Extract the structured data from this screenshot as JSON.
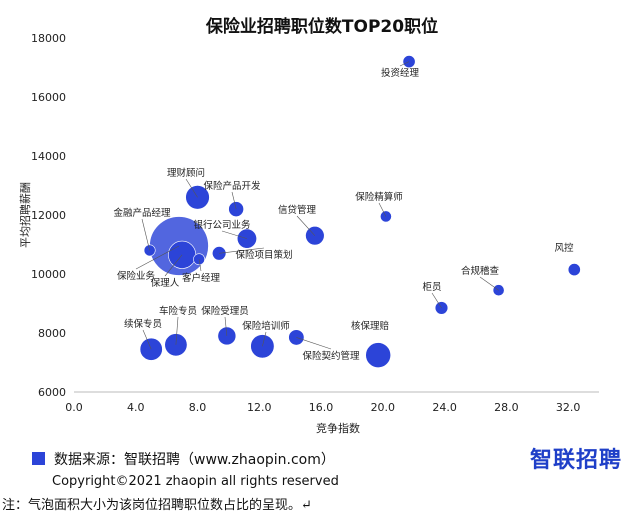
{
  "chart_data": {
    "type": "scatter",
    "title": "保险业招聘职位数TOP20职位",
    "xlabel": "竞争指数",
    "ylabel": "平均招聘薪酬",
    "xlim": [
      0,
      34
    ],
    "ylim": [
      6000,
      18000
    ],
    "xticks": [
      "0.0",
      "4.0",
      "8.0",
      "12.0",
      "16.0",
      "20.0",
      "24.0",
      "28.0",
      "32.0"
    ],
    "xtick_values": [
      0,
      4,
      8,
      12,
      16,
      20,
      24,
      28,
      32
    ],
    "yticks": [
      "6000",
      "8000",
      "10000",
      "12000",
      "14000",
      "16000",
      "18000"
    ],
    "ytick_values": [
      6000,
      8000,
      10000,
      12000,
      14000,
      16000,
      18000
    ],
    "grid": false,
    "color": "#2c44d8",
    "points": [
      {
        "label": "投资经理",
        "x": 21.7,
        "y": 17200,
        "size": 1.2
      },
      {
        "label": "理财顾问",
        "x": 8.0,
        "y": 12600,
        "size": 4.5
      },
      {
        "label": "保险产品开发",
        "x": 10.5,
        "y": 12200,
        "size": 1.8
      },
      {
        "label": "金融产品经理",
        "x": 4.9,
        "y": 10800,
        "size": 1.0
      },
      {
        "label": "银行公司业务",
        "x": 11.2,
        "y": 11200,
        "size": 3.0
      },
      {
        "label": "保险项目策划",
        "x": 9.4,
        "y": 10700,
        "size": 1.5
      },
      {
        "label": "信贷管理",
        "x": 15.6,
        "y": 11300,
        "size": 2.8
      },
      {
        "label": "保险精算师",
        "x": 20.2,
        "y": 11950,
        "size": 1.0
      },
      {
        "label": "保险业务",
        "x": 6.8,
        "y": 10950,
        "size": 28
      },
      {
        "label": "保理人",
        "x": 7.0,
        "y": 10650,
        "size": 6
      },
      {
        "label": "客户经理",
        "x": 8.1,
        "y": 10500,
        "size": 1.0
      },
      {
        "label": "风控",
        "x": 32.4,
        "y": 10150,
        "size": 1.2
      },
      {
        "label": "合规稽查",
        "x": 27.5,
        "y": 9450,
        "size": 1.0
      },
      {
        "label": "柜员",
        "x": 23.8,
        "y": 8850,
        "size": 1.3
      },
      {
        "label": "续保专员",
        "x": 5.0,
        "y": 7450,
        "size": 4.0
      },
      {
        "label": "车险专员",
        "x": 6.6,
        "y": 7600,
        "size": 4.0
      },
      {
        "label": "保险受理员",
        "x": 9.9,
        "y": 7900,
        "size": 2.6
      },
      {
        "label": "保险培训师",
        "x": 12.2,
        "y": 7550,
        "size": 4.4
      },
      {
        "label": "保险契约管理",
        "x": 14.4,
        "y": 7850,
        "size": 1.9
      },
      {
        "label": "核保理赔",
        "x": 19.7,
        "y": 7250,
        "size": 5.0
      }
    ]
  },
  "footer": {
    "source": "数据来源：智联招聘（www.zhaopin.com）",
    "copyright": "Copyright©2021 zhaopin all rights reserved",
    "logo": "智联招聘",
    "note": "注：气泡面积大小为该岗位招聘职位数占比的呈现。↵"
  }
}
